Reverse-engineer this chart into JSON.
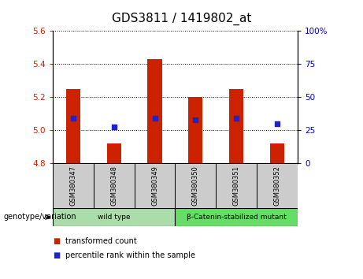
{
  "title": "GDS3811 / 1419802_at",
  "samples": [
    "GSM380347",
    "GSM380348",
    "GSM380349",
    "GSM380350",
    "GSM380351",
    "GSM380352"
  ],
  "bar_values": [
    5.25,
    4.92,
    5.43,
    5.2,
    5.25,
    4.92
  ],
  "bar_bottom": 4.8,
  "percentile_values": [
    5.07,
    5.02,
    5.07,
    5.06,
    5.07,
    5.04
  ],
  "ylim": [
    4.8,
    5.6
  ],
  "yticks": [
    4.8,
    5.0,
    5.2,
    5.4,
    5.6
  ],
  "right_yticks": [
    0,
    25,
    50,
    75,
    100
  ],
  "bar_color": "#cc2200",
  "percentile_color": "#2222cc",
  "group_labels": [
    "wild type",
    "β-Catenin-stabilized mutant"
  ],
  "group_colors": [
    "#aaddaa",
    "#66dd66"
  ],
  "group_ranges": [
    [
      0,
      3
    ],
    [
      3,
      6
    ]
  ],
  "legend_items": [
    {
      "label": "transformed count",
      "color": "#cc2200"
    },
    {
      "label": "percentile rank within the sample",
      "color": "#2222cc"
    }
  ],
  "genotype_label": "genotype/variation",
  "left_tick_color": "#cc2200",
  "right_tick_color": "#0000cc",
  "bar_width": 0.35,
  "sample_box_color": "#cccccc",
  "title_fontsize": 11
}
